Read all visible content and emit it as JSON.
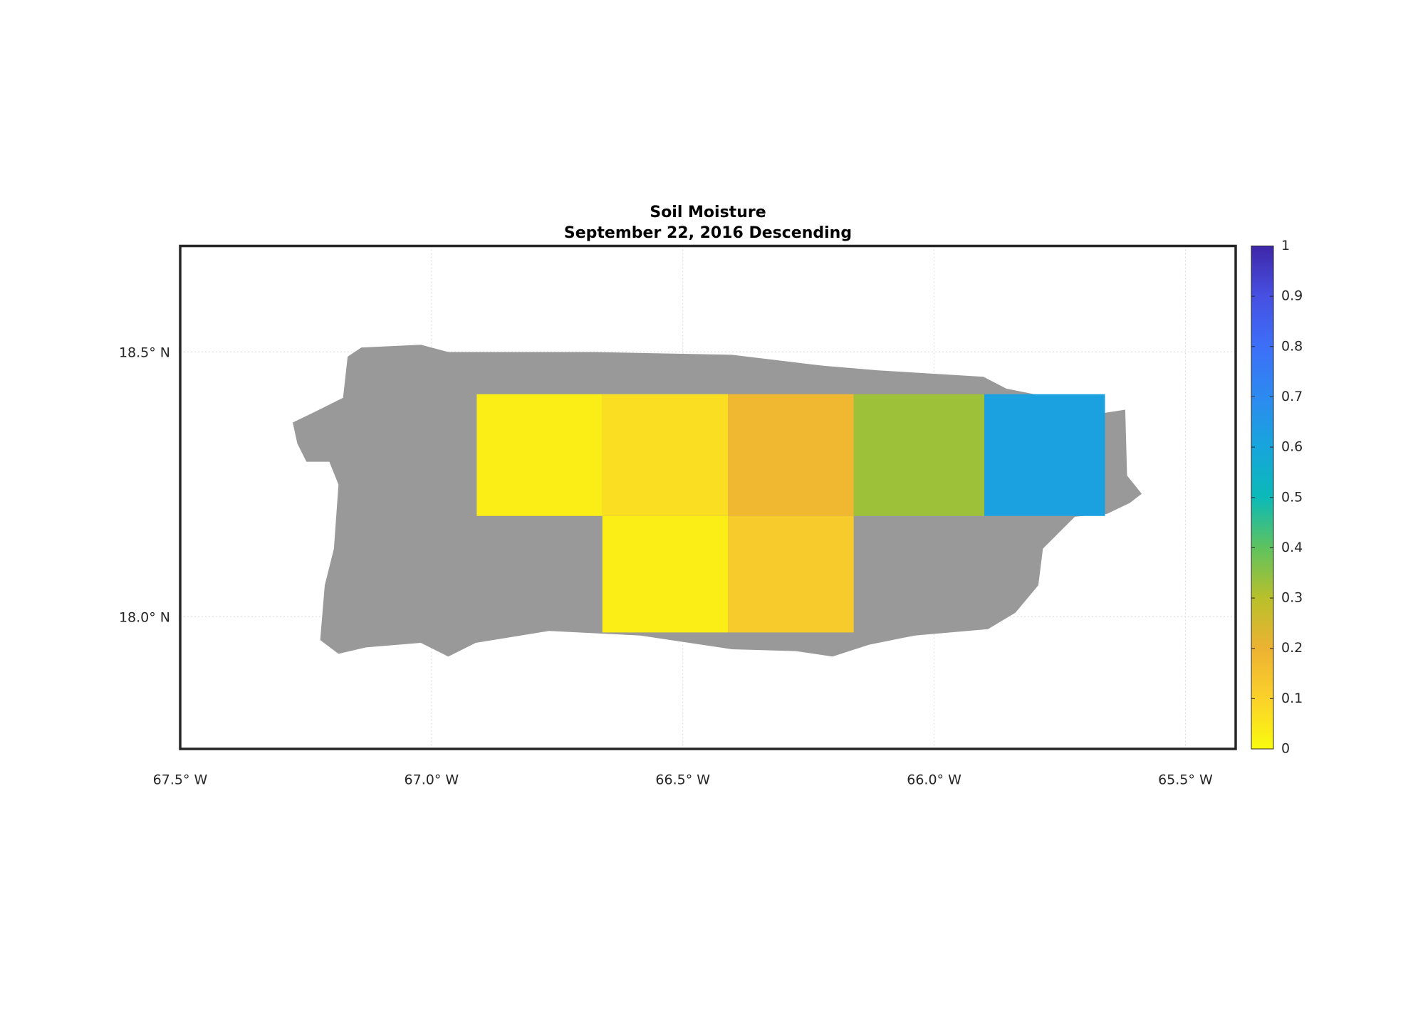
{
  "chart_data": {
    "type": "gridded-map",
    "title": "Soil Moisture",
    "subtitle": "September 22, 2016 Descending",
    "xlim": [
      -67.5,
      -65.4
    ],
    "ylim": [
      17.75,
      18.7
    ],
    "xticks": [
      {
        "value": -67.5,
        "label": "67.5° W"
      },
      {
        "value": -67.0,
        "label": "67.0° W"
      },
      {
        "value": -66.5,
        "label": "66.5° W"
      },
      {
        "value": -66.0,
        "label": "66.0° W"
      },
      {
        "value": -65.5,
        "label": "65.5° W"
      }
    ],
    "yticks": [
      {
        "value": 18.0,
        "label": "18.0° N"
      },
      {
        "value": 18.5,
        "label": "18.5° N"
      }
    ],
    "grid": true,
    "land_color": "#999999",
    "cells": [
      {
        "lon_min": -66.91,
        "lon_max": -66.66,
        "lat_min": 18.19,
        "lat_max": 18.42,
        "value": 0.03
      },
      {
        "lon_min": -66.66,
        "lon_max": -66.41,
        "lat_min": 18.19,
        "lat_max": 18.42,
        "value": 0.07
      },
      {
        "lon_min": -66.41,
        "lon_max": -66.16,
        "lat_min": 18.19,
        "lat_max": 18.42,
        "value": 0.18
      },
      {
        "lon_min": -66.16,
        "lon_max": -65.9,
        "lat_min": 18.19,
        "lat_max": 18.42,
        "value": 0.33
      },
      {
        "lon_min": -65.9,
        "lon_max": -65.66,
        "lat_min": 18.19,
        "lat_max": 18.42,
        "value": 0.62
      },
      {
        "lon_min": -66.66,
        "lon_max": -66.41,
        "lat_min": 17.97,
        "lat_max": 18.19,
        "value": 0.03
      },
      {
        "lon_min": -66.41,
        "lon_max": -66.16,
        "lat_min": 17.97,
        "lat_max": 18.19,
        "value": 0.12
      }
    ],
    "colorbar": {
      "lim": [
        0,
        1
      ],
      "ticks": [
        0,
        0.1,
        0.2,
        0.3,
        0.4,
        0.5,
        0.6,
        0.7,
        0.8,
        0.9,
        1
      ],
      "colors": [
        "#f9fb0e",
        "#fbd12a",
        "#ecb232",
        "#b9c02b",
        "#5ec25e",
        "#0bbab8",
        "#17a5dc",
        "#2c8af0",
        "#3d6ff8",
        "#4650e2",
        "#3e26a8"
      ]
    }
  }
}
